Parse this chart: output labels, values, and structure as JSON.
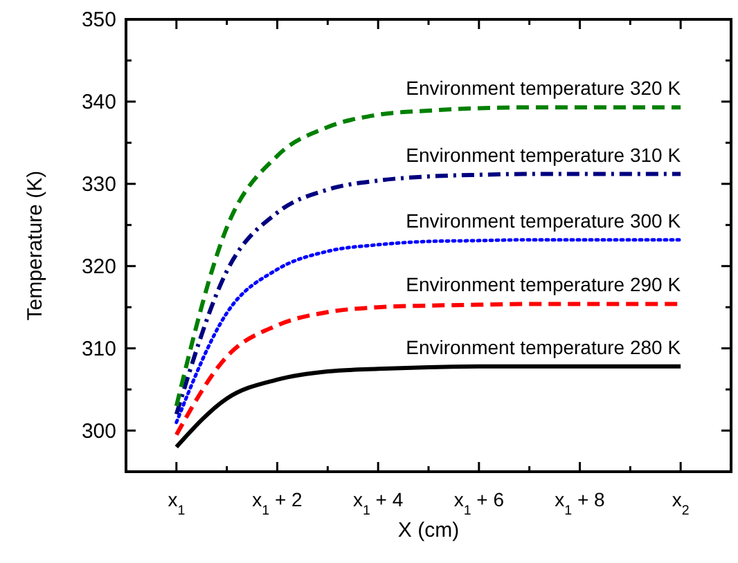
{
  "chart_data": {
    "type": "line",
    "xlabel": "X (cm)",
    "ylabel": "Temperature (K)",
    "categories": [
      "x$_{1}$",
      null,
      "x$_{1}$ + 2",
      null,
      "x$_{1}$ + 4",
      null,
      "x$_{1}$ + 6",
      null,
      "x$_{1}$ + 8",
      null,
      "x$_{2}$"
    ],
    "ylim": [
      295,
      350
    ],
    "yticks": [
      300,
      {
        "value": 305,
        "label": null
      },
      310,
      {
        "value": 315,
        "label": null
      },
      320,
      {
        "value": 325,
        "label": null
      },
      330,
      {
        "value": 335,
        "label": null
      },
      340,
      {
        "value": 345,
        "label": null
      },
      350
    ],
    "grid": false,
    "marker": "none",
    "annotations": [
      {
        "text": "Environment temperature 280 K",
        "x": "x$_{2}$",
        "y": 307.8
      },
      {
        "text": "Environment temperature 290 K",
        "x": "x$_{2}$",
        "y": 315.4
      },
      {
        "text": "Environment temperature 300 K",
        "x": "x$_{2}$",
        "y": 323.2
      },
      {
        "text": "Environment temperature 310 K",
        "x": "x$_{2}$",
        "y": 331.2
      },
      {
        "text": "Environment temperature 320 K",
        "x": "x$_{2}$",
        "y": 339.3
      }
    ],
    "series": [
      {
        "color": "#000000",
        "line_style": "solid",
        "values": [
          298,
          303.9,
          306.2,
          307.2,
          307.5,
          307.7,
          307.8,
          307.8,
          307.8,
          307.8,
          307.8
        ]
      },
      {
        "color": "#ff0000",
        "line_style": "dashed",
        "values": [
          299.5,
          309.0,
          312.8,
          314.4,
          315.0,
          315.2,
          315.3,
          315.4,
          315.4,
          315.4,
          315.4
        ]
      },
      {
        "color": "#0000ff",
        "line_style": "dotted",
        "values": [
          301,
          314.3,
          319.6,
          321.8,
          322.6,
          323.0,
          323.1,
          323.2,
          323.2,
          323.2,
          323.2
        ]
      },
      {
        "color": "#000080",
        "line_style": "dashdot",
        "values": [
          302,
          319.4,
          326.5,
          329.3,
          330.4,
          330.9,
          331.1,
          331.2,
          331.2,
          331.2,
          331.2
        ]
      },
      {
        "color": "#008000",
        "line_style": "dashed",
        "values": [
          303,
          324.7,
          333.4,
          336.9,
          338.4,
          338.9,
          339.2,
          339.3,
          339.3,
          339.3,
          339.3
        ]
      }
    ]
  }
}
